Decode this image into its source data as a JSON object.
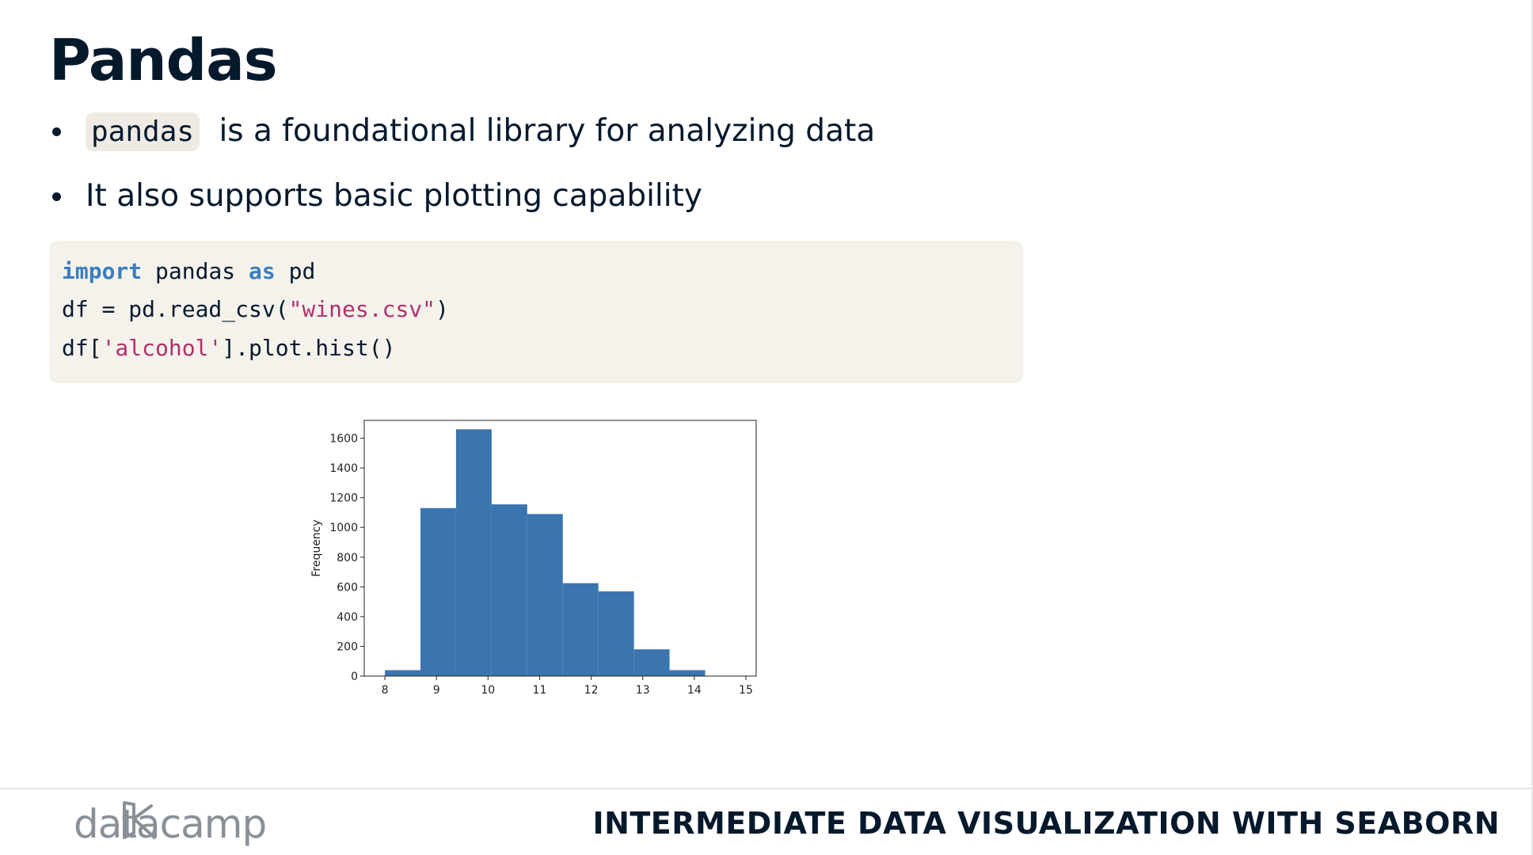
{
  "slide": {
    "title": "Pandas",
    "bullets": [
      {
        "code": "pandas",
        "text": " is a foundational library for analyzing data"
      },
      {
        "text": "It also supports basic plotting capability"
      }
    ]
  },
  "code": {
    "line1": {
      "kw1": "import",
      "t1": " pandas ",
      "kw2": "as",
      "t2": " pd"
    },
    "line2": {
      "t1": "df = pd.read_csv(",
      "str": "\"wines.csv\"",
      "t2": ")"
    },
    "line3": {
      "t1": "df[",
      "str": "'alcohol'",
      "t2": "].plot.hist()"
    }
  },
  "chart_data": {
    "type": "bar",
    "title": "",
    "xlabel": "",
    "ylabel": "Frequency",
    "xlim": [
      7.6,
      15.2
    ],
    "ylim": [
      0,
      1720
    ],
    "xticks": [
      8,
      9,
      10,
      11,
      12,
      13,
      14,
      15
    ],
    "yticks": [
      0,
      200,
      400,
      600,
      800,
      1000,
      1200,
      1400,
      1600
    ],
    "bins": [
      {
        "start": 8.0,
        "end": 8.69,
        "count": 40
      },
      {
        "start": 8.69,
        "end": 9.38,
        "count": 1130
      },
      {
        "start": 9.38,
        "end": 10.07,
        "count": 1660
      },
      {
        "start": 10.07,
        "end": 10.76,
        "count": 1155
      },
      {
        "start": 10.76,
        "end": 11.45,
        "count": 1090
      },
      {
        "start": 11.45,
        "end": 12.14,
        "count": 625
      },
      {
        "start": 12.14,
        "end": 12.83,
        "count": 570
      },
      {
        "start": 12.83,
        "end": 13.52,
        "count": 180
      },
      {
        "start": 13.52,
        "end": 14.21,
        "count": 40
      }
    ],
    "bar_color": "#3b75af"
  },
  "footer": {
    "logo_text": "datacamp",
    "course_title": "INTERMEDIATE DATA VISUALIZATION WITH SEABORN"
  }
}
